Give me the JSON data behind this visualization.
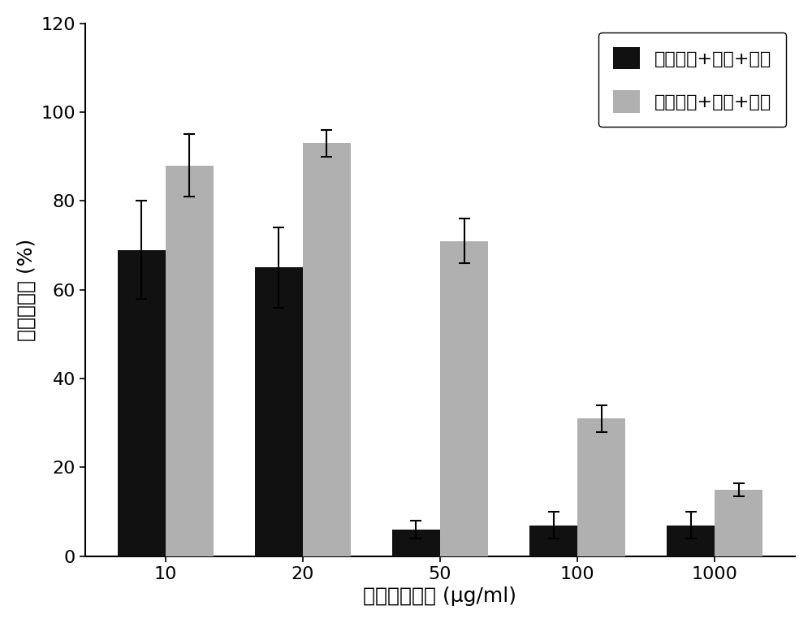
{
  "categories": [
    "10",
    "20",
    "50",
    "100",
    "1000"
  ],
  "black_values": [
    69,
    65,
    6,
    7,
    7
  ],
  "black_errors": [
    11,
    9,
    2,
    3,
    3
  ],
  "gray_values": [
    88,
    93,
    71,
    31,
    15
  ],
  "gray_errors": [
    7,
    3,
    5,
    3,
    1.5
  ],
  "black_color": "#111111",
  "gray_color": "#b0b0b0",
  "xlabel": "复合材料浓度 (μg/ml)",
  "ylabel": "细胞生存率 (%)",
  "ylim": [
    0,
    120
  ],
  "yticks": [
    0,
    20,
    40,
    60,
    80,
    100,
    120
  ],
  "legend_black": "肿瘾细胞+材料+照射",
  "legend_gray": "正常细胞+材料+照射",
  "bar_width": 0.35,
  "label_fontsize": 18,
  "tick_fontsize": 16,
  "legend_fontsize": 16,
  "background_color": "#ffffff"
}
